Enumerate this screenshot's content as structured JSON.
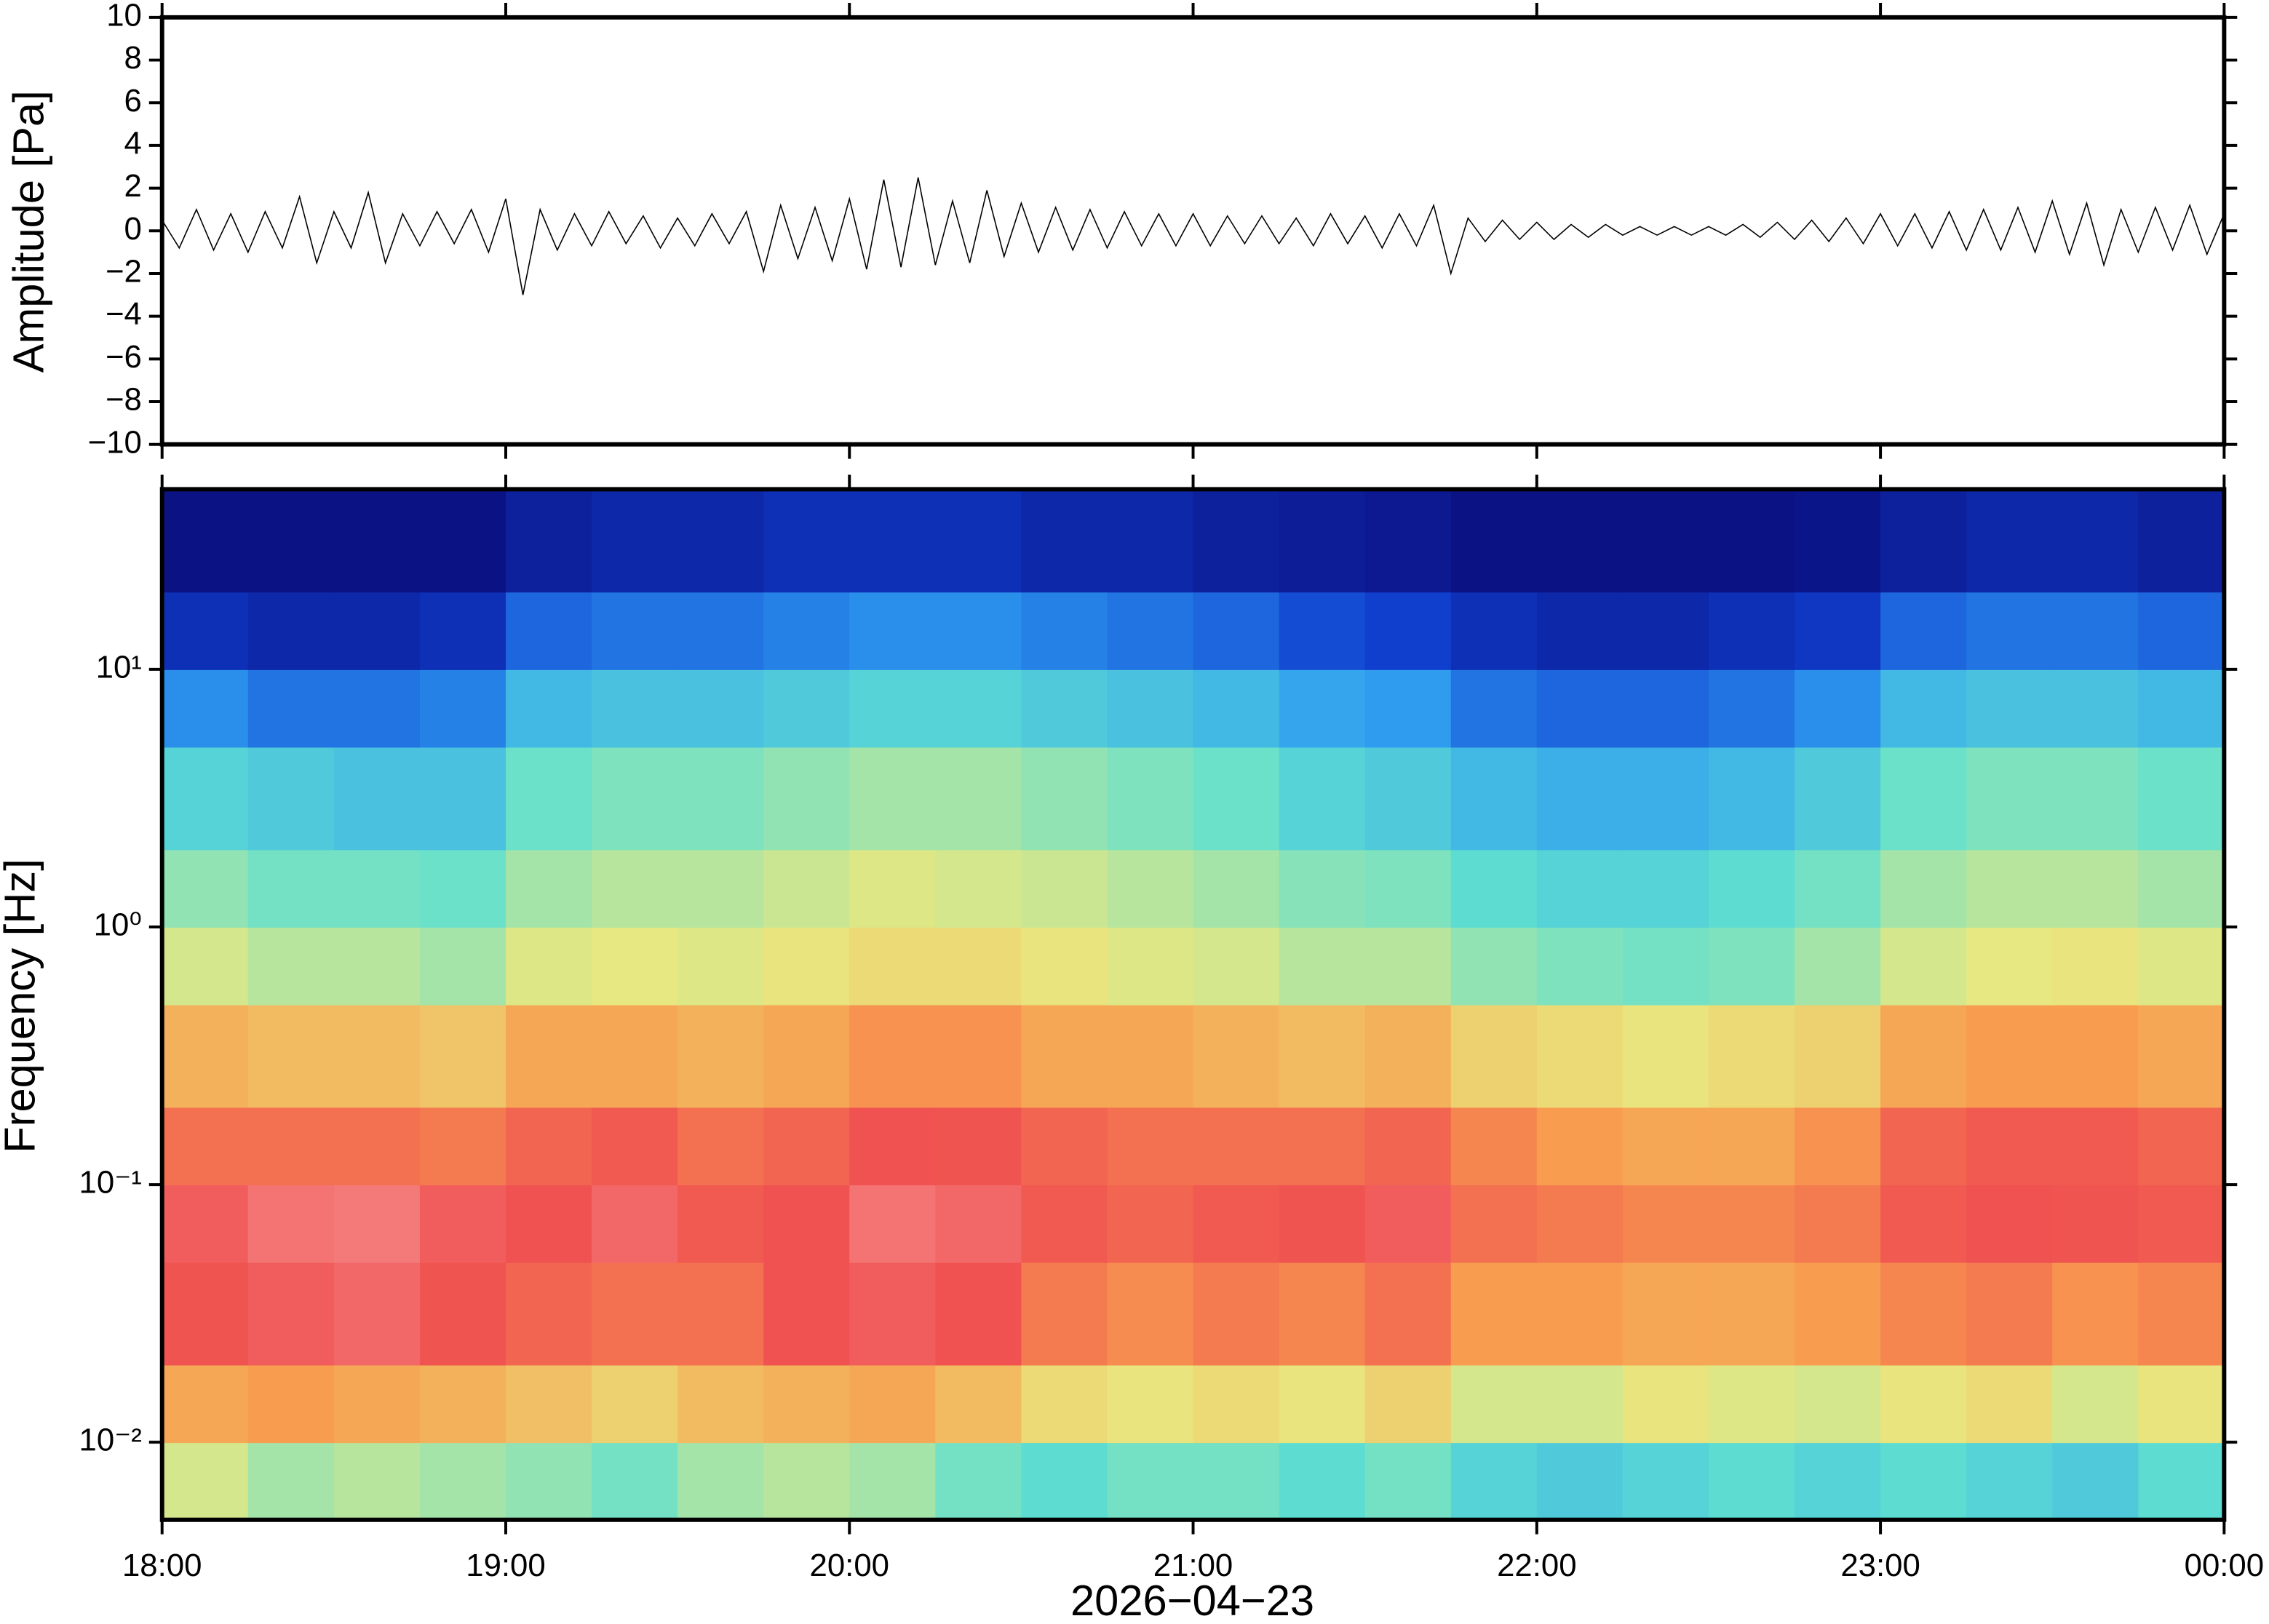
{
  "chart_data": [
    {
      "type": "line",
      "ylabel": "Amplitude [Pa]",
      "color": "#000000",
      "xlim": [
        18,
        24
      ],
      "ylim": [
        -10,
        10
      ],
      "yticks": [
        {
          "value": -10,
          "label": "−10"
        },
        {
          "value": -8,
          "label": "−8"
        },
        {
          "value": -6,
          "label": "−6"
        },
        {
          "value": -4,
          "label": "−4"
        },
        {
          "value": -2,
          "label": "−2"
        },
        0,
        2,
        4,
        6,
        8,
        10
      ],
      "x": [
        18.0,
        18.05,
        18.1,
        18.15,
        18.2,
        18.25,
        18.3,
        18.35,
        18.4,
        18.45,
        18.5,
        18.55,
        18.6,
        18.65,
        18.7,
        18.75,
        18.8,
        18.85,
        18.9,
        18.95,
        19.0,
        19.05,
        19.1,
        19.15,
        19.2,
        19.25,
        19.3,
        19.35,
        19.4,
        19.45,
        19.5,
        19.55,
        19.6,
        19.65,
        19.7,
        19.75,
        19.8,
        19.85,
        19.9,
        19.95,
        20.0,
        20.05,
        20.1,
        20.15,
        20.2,
        20.25,
        20.3,
        20.35,
        20.4,
        20.45,
        20.5,
        20.55,
        20.6,
        20.65,
        20.7,
        20.75,
        20.8,
        20.85,
        20.9,
        20.95,
        21.0,
        21.05,
        21.1,
        21.15,
        21.2,
        21.25,
        21.3,
        21.35,
        21.4,
        21.45,
        21.5,
        21.55,
        21.6,
        21.65,
        21.7,
        21.75,
        21.8,
        21.85,
        21.9,
        21.95,
        22.0,
        22.05,
        22.1,
        22.15,
        22.2,
        22.25,
        22.3,
        22.35,
        22.4,
        22.45,
        22.5,
        22.55,
        22.6,
        22.65,
        22.7,
        22.75,
        22.8,
        22.85,
        22.9,
        22.95,
        23.0,
        23.05,
        23.1,
        23.15,
        23.2,
        23.25,
        23.3,
        23.35,
        23.4,
        23.45,
        23.5,
        23.55,
        23.6,
        23.65,
        23.7,
        23.75,
        23.8,
        23.85,
        23.9,
        23.95,
        24.0
      ],
      "values": [
        0.5,
        -0.8,
        1.0,
        -0.9,
        0.8,
        -1.0,
        0.9,
        -0.8,
        1.6,
        -1.5,
        0.9,
        -0.8,
        1.8,
        -1.5,
        0.8,
        -0.7,
        0.9,
        -0.6,
        1.0,
        -1.0,
        1.5,
        -3.0,
        1.0,
        -0.9,
        0.8,
        -0.7,
        0.9,
        -0.6,
        0.7,
        -0.8,
        0.6,
        -0.7,
        0.8,
        -0.6,
        0.9,
        -1.9,
        1.2,
        -1.3,
        1.1,
        -1.4,
        1.5,
        -1.8,
        2.4,
        -1.7,
        2.5,
        -1.6,
        1.4,
        -1.5,
        1.9,
        -1.2,
        1.3,
        -1.0,
        1.1,
        -0.9,
        1.0,
        -0.8,
        0.9,
        -0.7,
        0.8,
        -0.7,
        0.8,
        -0.7,
        0.7,
        -0.6,
        0.7,
        -0.6,
        0.6,
        -0.7,
        0.8,
        -0.6,
        0.7,
        -0.8,
        0.8,
        -0.7,
        1.2,
        -2.0,
        0.6,
        -0.5,
        0.5,
        -0.4,
        0.4,
        -0.4,
        0.3,
        -0.3,
        0.3,
        -0.2,
        0.2,
        -0.2,
        0.2,
        -0.2,
        0.2,
        -0.2,
        0.3,
        -0.3,
        0.4,
        -0.4,
        0.5,
        -0.5,
        0.6,
        -0.6,
        0.8,
        -0.7,
        0.8,
        -0.8,
        0.9,
        -0.9,
        1.0,
        -0.9,
        1.1,
        -1.0,
        1.4,
        -1.1,
        1.3,
        -1.6,
        1.0,
        -1.0,
        1.1,
        -0.9,
        1.2,
        -1.1,
        0.8
      ]
    },
    {
      "type": "heatmap",
      "ylabel": "Frequency [Hz]",
      "xlabel": "2026−04−23",
      "xlim": [
        18,
        24
      ],
      "ylim": [
        0.005,
        50
      ],
      "yscale": "log",
      "xticks": [
        {
          "value": 18,
          "label": "18:00"
        },
        {
          "value": 19,
          "label": "19:00"
        },
        {
          "value": 20,
          "label": "20:00"
        },
        {
          "value": 21,
          "label": "21:00"
        },
        {
          "value": 22,
          "label": "22:00"
        },
        {
          "value": 23,
          "label": "23:00"
        },
        {
          "value": 24,
          "label": "00:00"
        }
      ],
      "yticks": [
        {
          "value": 0.01,
          "label": "10⁻²"
        },
        {
          "value": 0.1,
          "label": "10⁻¹"
        },
        {
          "value": 1,
          "label": "10⁰"
        },
        {
          "value": 10,
          "label": "10¹"
        }
      ],
      "x_bins": [
        18,
        18.25,
        18.5,
        18.75,
        19,
        19.25,
        19.5,
        19.75,
        20,
        20.25,
        20.5,
        20.75,
        21,
        21.25,
        21.5,
        21.75,
        22,
        22.25,
        22.5,
        22.75,
        23,
        23.25,
        23.5,
        23.75,
        24
      ],
      "y_bins": [
        0.005,
        0.01,
        0.02,
        0.05,
        0.1,
        0.2,
        0.5,
        1,
        2,
        5,
        10,
        20,
        50
      ],
      "zlim": [
        0,
        1
      ],
      "colormap": [
        "#0a0a78",
        "#1040d0",
        "#30a0f0",
        "#60e0d0",
        "#e8e880",
        "#f8a050",
        "#f05050",
        "#f8a0a0"
      ],
      "z": [
        [
          0.55,
          0.5,
          0.52,
          0.5,
          0.48,
          0.45,
          0.5,
          0.52,
          0.5,
          0.45,
          0.42,
          0.45,
          0.45,
          0.42,
          0.45,
          0.4,
          0.38,
          0.4,
          0.42,
          0.4,
          0.42,
          0.4,
          0.38,
          0.42
        ],
        [
          0.7,
          0.72,
          0.7,
          0.68,
          0.65,
          0.62,
          0.66,
          0.68,
          0.7,
          0.66,
          0.6,
          0.58,
          0.6,
          0.58,
          0.62,
          0.55,
          0.55,
          0.58,
          0.56,
          0.55,
          0.58,
          0.6,
          0.55,
          0.58
        ],
        [
          0.85,
          0.88,
          0.9,
          0.85,
          0.82,
          0.8,
          0.8,
          0.86,
          0.88,
          0.86,
          0.78,
          0.75,
          0.78,
          0.76,
          0.8,
          0.72,
          0.72,
          0.7,
          0.7,
          0.72,
          0.76,
          0.78,
          0.74,
          0.76
        ],
        [
          0.88,
          0.92,
          0.93,
          0.88,
          0.86,
          0.9,
          0.84,
          0.86,
          0.92,
          0.9,
          0.84,
          0.82,
          0.84,
          0.85,
          0.88,
          0.8,
          0.78,
          0.76,
          0.76,
          0.78,
          0.84,
          0.86,
          0.85,
          0.84
        ],
        [
          0.8,
          0.8,
          0.8,
          0.78,
          0.82,
          0.84,
          0.8,
          0.82,
          0.86,
          0.85,
          0.82,
          0.8,
          0.8,
          0.8,
          0.82,
          0.76,
          0.72,
          0.7,
          0.7,
          0.74,
          0.82,
          0.84,
          0.84,
          0.82
        ],
        [
          0.68,
          0.66,
          0.66,
          0.64,
          0.7,
          0.7,
          0.68,
          0.7,
          0.74,
          0.74,
          0.7,
          0.7,
          0.68,
          0.66,
          0.68,
          0.62,
          0.6,
          0.58,
          0.6,
          0.62,
          0.7,
          0.72,
          0.72,
          0.7
        ],
        [
          0.55,
          0.52,
          0.52,
          0.5,
          0.56,
          0.57,
          0.56,
          0.58,
          0.6,
          0.6,
          0.58,
          0.56,
          0.55,
          0.52,
          0.52,
          0.48,
          0.46,
          0.45,
          0.46,
          0.5,
          0.55,
          0.57,
          0.58,
          0.56
        ],
        [
          0.48,
          0.45,
          0.45,
          0.44,
          0.5,
          0.52,
          0.52,
          0.54,
          0.56,
          0.55,
          0.54,
          0.52,
          0.5,
          0.47,
          0.46,
          0.42,
          0.4,
          0.4,
          0.42,
          0.45,
          0.5,
          0.52,
          0.52,
          0.5
        ],
        [
          0.4,
          0.38,
          0.36,
          0.36,
          0.44,
          0.46,
          0.46,
          0.48,
          0.5,
          0.5,
          0.48,
          0.46,
          0.44,
          0.4,
          0.38,
          0.34,
          0.32,
          0.32,
          0.34,
          0.38,
          0.44,
          0.46,
          0.46,
          0.44
        ],
        [
          0.26,
          0.22,
          0.22,
          0.24,
          0.34,
          0.36,
          0.36,
          0.38,
          0.4,
          0.4,
          0.38,
          0.36,
          0.34,
          0.3,
          0.28,
          0.22,
          0.2,
          0.2,
          0.22,
          0.26,
          0.34,
          0.36,
          0.36,
          0.34
        ],
        [
          0.1,
          0.08,
          0.08,
          0.1,
          0.2,
          0.22,
          0.22,
          0.24,
          0.26,
          0.26,
          0.24,
          0.22,
          0.2,
          0.16,
          0.14,
          0.1,
          0.08,
          0.08,
          0.1,
          0.12,
          0.2,
          0.22,
          0.22,
          0.2
        ],
        [
          0.02,
          0.02,
          0.02,
          0.02,
          0.06,
          0.08,
          0.08,
          0.1,
          0.1,
          0.1,
          0.08,
          0.08,
          0.06,
          0.05,
          0.04,
          0.02,
          0.02,
          0.02,
          0.02,
          0.03,
          0.06,
          0.08,
          0.08,
          0.06
        ]
      ]
    }
  ]
}
